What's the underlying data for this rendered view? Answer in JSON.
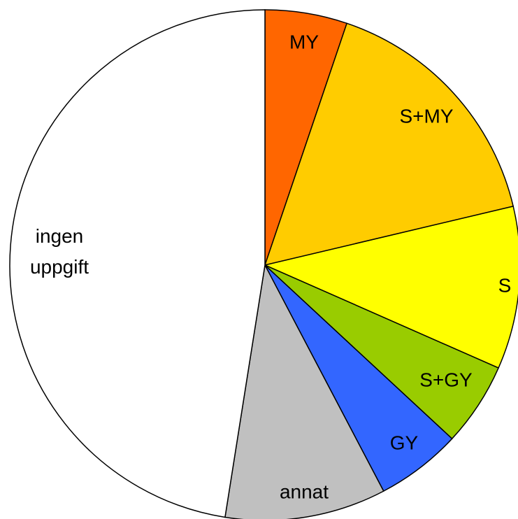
{
  "chart_data": {
    "type": "pie",
    "categories": [
      "MY",
      "S+MY",
      "S",
      "S+GY",
      "GY",
      "annat",
      "ingen uppgift"
    ],
    "values": [
      5.2,
      16.1,
      10.3,
      5.3,
      5.4,
      10.2,
      47.5
    ],
    "colors": [
      "#ff6600",
      "#ffcc00",
      "#ffff00",
      "#99cc00",
      "#3366ff",
      "#c0c0c0",
      "#ffffff"
    ]
  }
}
